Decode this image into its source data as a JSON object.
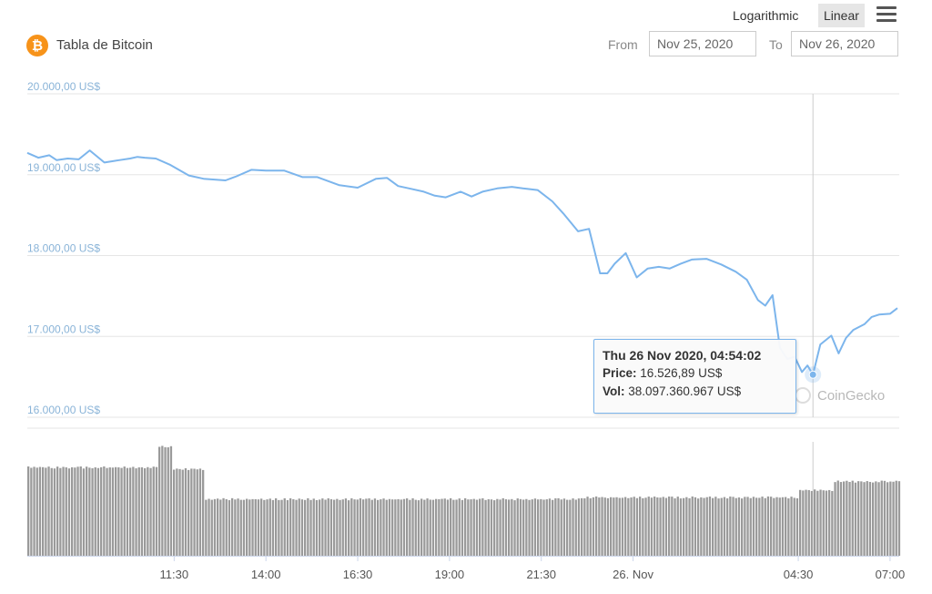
{
  "header": {
    "logo_glyph": "₿",
    "title": "Tabla de Bitcoin",
    "scale_options": [
      "Logarithmic",
      "Linear"
    ],
    "scale_selected": "Linear",
    "menu_icon": "hamburger-menu-icon",
    "from_label": "From",
    "from_value": "Nov 25, 2020",
    "to_label": "To",
    "to_value": "Nov 26, 2020"
  },
  "tooltip": {
    "heading": "Thu 26 Nov 2020, 04:54:02",
    "price_label": "Price:",
    "price_value": "16.526,89 US$",
    "vol_label": "Vol:",
    "vol_value": "38.097.360.967 US$"
  },
  "watermark": "CoinGecko",
  "colors": {
    "price_line": "#7cb5ec",
    "volume_bars": "#9a9a9a",
    "grid": "#e6e6e6",
    "axis_label": "#8ab4d8",
    "logo": "#f7931a"
  },
  "chart_data": {
    "type": "line",
    "y_axis": {
      "ylim": [
        16000,
        20000
      ],
      "ticks": [
        16000,
        17000,
        18000,
        19000,
        20000
      ],
      "tick_labels": [
        "16.000,00 US$",
        "17.000,00 US$",
        "18.000,00 US$",
        "19.000,00 US$",
        "20.000,00 US$"
      ]
    },
    "x_axis": {
      "xlim": [
        7.5,
        31.25
      ],
      "ticks": [
        11.5,
        14,
        16.5,
        19,
        21.5,
        24,
        28.5,
        31
      ],
      "tick_labels": [
        "11:30",
        "14:00",
        "16:30",
        "19:00",
        "21:30",
        "26. Nov",
        "04:30",
        "07:00"
      ]
    },
    "grid": true,
    "legend": "none",
    "highlight": {
      "x": 28.9,
      "y": 16526.89
    },
    "series": [
      {
        "x": [
          7.5,
          7.8,
          8.1,
          8.3,
          8.6,
          8.9,
          9.2,
          9.6,
          10.0,
          10.3,
          10.5,
          10.7,
          11.0,
          11.4,
          11.9,
          12.3,
          12.6,
          12.9,
          13.2,
          13.6,
          14.0,
          14.5,
          15.0,
          15.4,
          16.0,
          16.5,
          17.0,
          17.3,
          17.6,
          17.9,
          18.3,
          18.6,
          18.9,
          19.3,
          19.6,
          19.9,
          20.3,
          20.7,
          21.0,
          21.4,
          21.8,
          22.1,
          22.5,
          22.8,
          23.1,
          23.3,
          23.5,
          23.8,
          24.1,
          24.4,
          24.7,
          25.0,
          25.3,
          25.6,
          26.0,
          26.4,
          26.8,
          27.1,
          27.4,
          27.6,
          27.8,
          28.0,
          28.2,
          28.4,
          28.6,
          28.75,
          28.9,
          29.1,
          29.4,
          29.6,
          29.8,
          30.0,
          30.3,
          30.5,
          30.7,
          31.0,
          31.2
        ],
        "y": [
          19270,
          19210,
          19240,
          19180,
          19200,
          19190,
          19300,
          19150,
          19180,
          19200,
          19220,
          19210,
          19200,
          19120,
          18990,
          18950,
          18940,
          18930,
          18980,
          19060,
          19050,
          19050,
          18970,
          18970,
          18870,
          18840,
          18950,
          18960,
          18860,
          18830,
          18790,
          18740,
          18720,
          18790,
          18730,
          18790,
          18830,
          18850,
          18830,
          18810,
          18670,
          18520,
          18300,
          18330,
          17780,
          17780,
          17900,
          18030,
          17730,
          17840,
          17860,
          17840,
          17900,
          17950,
          17960,
          17890,
          17800,
          17700,
          17450,
          17380,
          17510,
          16860,
          16720,
          16750,
          16560,
          16640,
          16527,
          16900,
          17010,
          16790,
          16980,
          17080,
          17150,
          17240,
          17270,
          17280,
          17350
        ]
      }
    ],
    "volume": {
      "x_start": 7.5,
      "x_end": 31.25,
      "levels": [
        {
          "x_from": 7.5,
          "x_to": 11.0,
          "level": 0.5
        },
        {
          "x_from": 11.0,
          "x_to": 11.4,
          "level": 0.62
        },
        {
          "x_from": 11.4,
          "x_to": 12.3,
          "level": 0.49
        },
        {
          "x_from": 12.3,
          "x_to": 22.5,
          "level": 0.32
        },
        {
          "x_from": 22.5,
          "x_to": 28.5,
          "level": 0.33
        },
        {
          "x_from": 28.5,
          "x_to": 29.4,
          "level": 0.37
        },
        {
          "x_from": 29.4,
          "x_to": 31.25,
          "level": 0.42
        }
      ]
    }
  }
}
